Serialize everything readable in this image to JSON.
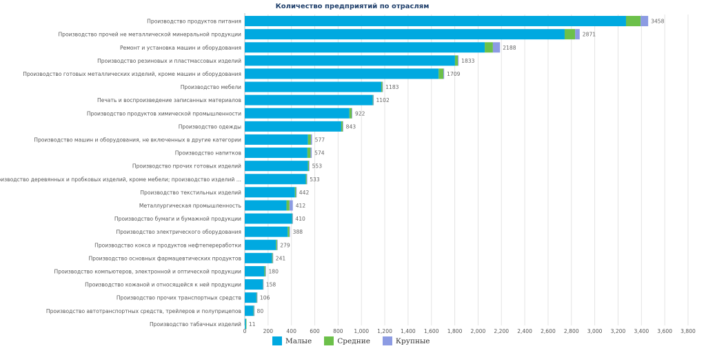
{
  "chart_data": {
    "type": "bar",
    "orientation": "horizontal",
    "stacked": true,
    "title": "Количество предприятий по отраслям",
    "categories": [
      "Производство продуктов питания",
      "Производство прочей не металлической минеральной продукции",
      "Ремонт и установка машин и оборудования",
      "Производство резиновых и пластмассовых изделий",
      "Производство готовых металлических изделий, кроме машин и оборудования",
      "Производство мебели",
      "Печать и воспроизведение записанных материалов",
      "Производство продуктов химической промышленности",
      "Производство одежды",
      "Производство машин и оборудования, не включенных в другие категории",
      "Производство напитков",
      "Производство прочих готовых изделий",
      "Производство деревянных и пробковых изделий, кроме мебели; производство изделий ...",
      "Производство текстильных изделий",
      "Металлургическая промышленность",
      "Производство бумаги и бумажной продукции",
      "Производство электрического оборудования",
      "Производство кокса и продуктов нефтепереработки",
      "Производство основных фармацевтических продуктов",
      "Производство компьютеров, электронной и оптической продукции",
      "Производство кожаной и относящейся к ней продукции",
      "Производство прочих транспортных средств",
      "Производство автотранспортных средств, трейлеров и полуприцепов",
      "Производство табачных изделий"
    ],
    "series": [
      {
        "name": "Малые",
        "color": "#00a9e0",
        "values": [
          3268,
          2742,
          2057,
          1802,
          1662,
          1170,
          1097,
          897,
          827,
          542,
          537,
          541,
          523,
          430,
          358,
          405,
          368,
          268,
          233,
          168,
          155,
          100,
          75,
          10
        ]
      },
      {
        "name": "Средние",
        "color": "#6cc04a",
        "values": [
          125,
          90,
          70,
          25,
          40,
          10,
          4,
          20,
          13,
          25,
          27,
          9,
          8,
          10,
          25,
          3,
          15,
          9,
          6,
          9,
          2,
          4,
          4,
          1
        ]
      },
      {
        "name": "Крупные",
        "color": "#8c9be3",
        "values": [
          65,
          39,
          61,
          6,
          7,
          3,
          1,
          5,
          3,
          10,
          10,
          3,
          2,
          2,
          29,
          2,
          5,
          2,
          2,
          3,
          1,
          2,
          1,
          0
        ]
      }
    ],
    "totals": [
      3458,
      2871,
      2188,
      1833,
      1709,
      1183,
      1102,
      922,
      843,
      577,
      574,
      553,
      533,
      442,
      412,
      410,
      388,
      279,
      241,
      180,
      158,
      106,
      80,
      11
    ],
    "xlim": [
      0,
      3800
    ],
    "xticks": [
      "0",
      "200",
      "400",
      "600",
      "800",
      "1,000",
      "1,200",
      "1,400",
      "1,600",
      "1,800",
      "2,000",
      "2,200",
      "2,400",
      "2,600",
      "2,800",
      "3,000",
      "3,200",
      "3,400",
      "3,600",
      "3,800"
    ],
    "grid": true,
    "legend_position": "bottom"
  }
}
